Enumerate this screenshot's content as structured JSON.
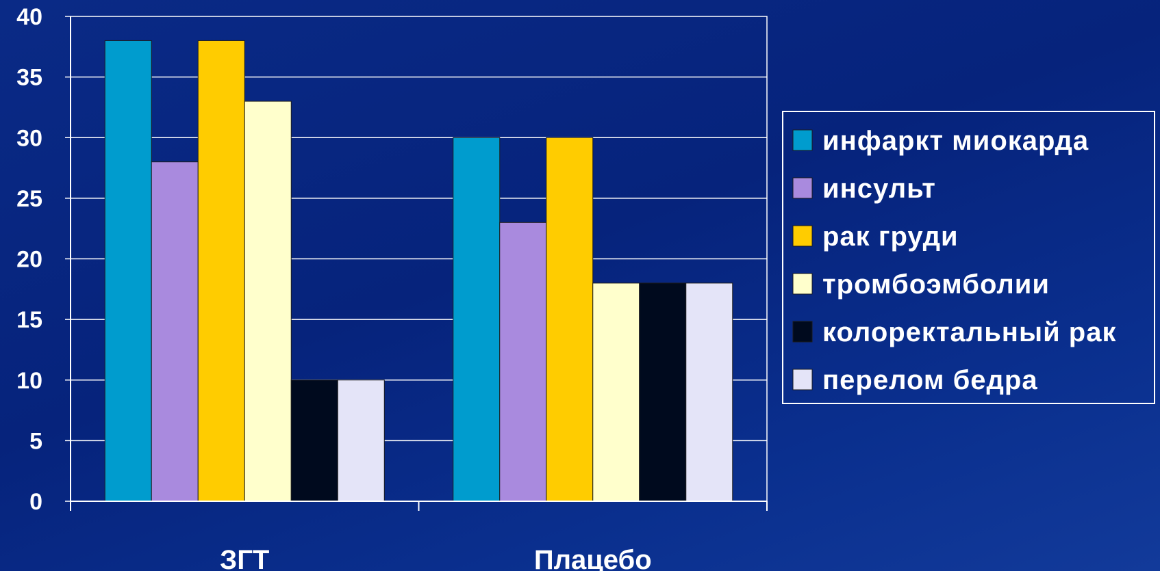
{
  "chart_data": {
    "type": "bar",
    "categories": [
      "ЗГТ",
      "Плацебо"
    ],
    "series": [
      {
        "name": "инфаркт миокарда",
        "color": "#009cce",
        "values": [
          38,
          30
        ]
      },
      {
        "name": "инсульт",
        "color": "#a98ade",
        "values": [
          28,
          23
        ]
      },
      {
        "name": "рак груди",
        "color": "#ffcc00",
        "values": [
          38,
          30
        ]
      },
      {
        "name": "тромбоэмболии",
        "color": "#ffffcc",
        "values": [
          33,
          18
        ]
      },
      {
        "name": "колоректальный рак",
        "color": "#000a1e",
        "values": [
          10,
          18
        ]
      },
      {
        "name": "перелом бедра",
        "color": "#e4e4f8",
        "values": [
          10,
          18
        ]
      }
    ],
    "title": "",
    "xlabel": "",
    "ylabel": "",
    "ylim": [
      0,
      40
    ],
    "yticks": [
      0,
      5,
      10,
      15,
      20,
      25,
      30,
      35,
      40
    ],
    "grid": true,
    "legend_position": "right"
  }
}
